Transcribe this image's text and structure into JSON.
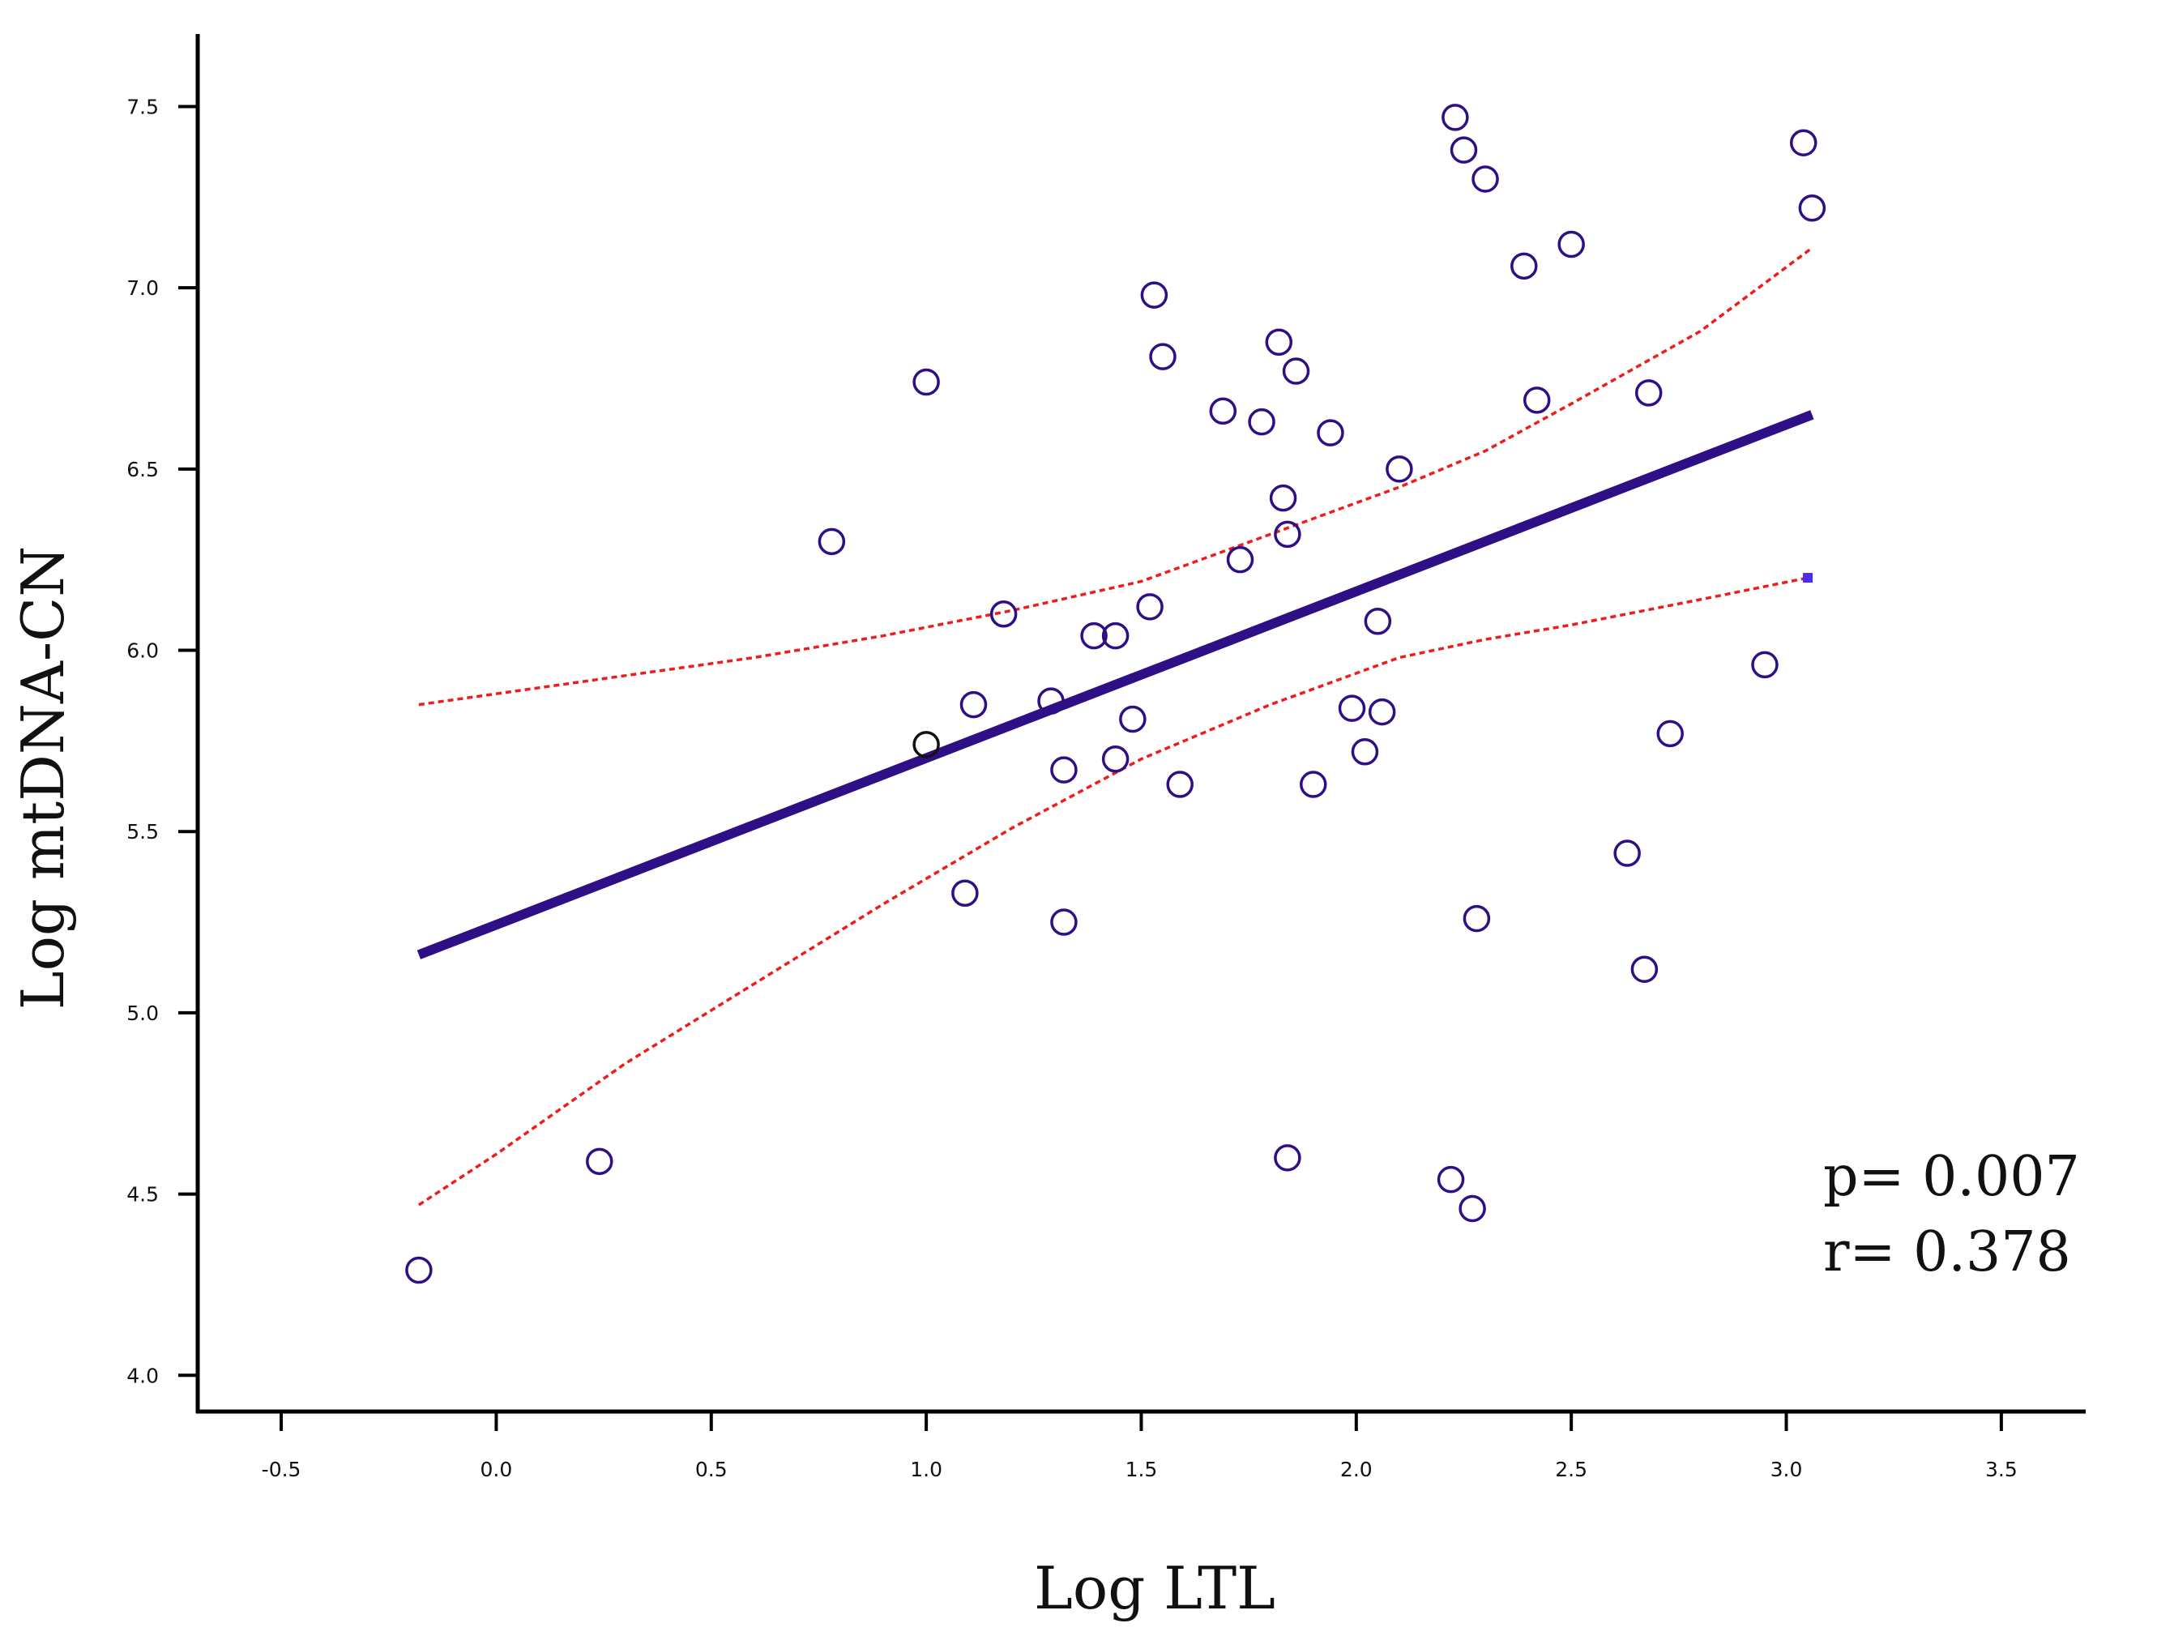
{
  "chart_data": {
    "type": "scatter",
    "xlabel": "Log LTL",
    "ylabel": "Log mtDNA-CN",
    "xlim": [
      -0.6,
      3.7
    ],
    "ylim": [
      3.9,
      7.7
    ],
    "x_ticks": [
      -0.5,
      0.0,
      0.5,
      1.0,
      1.5,
      2.0,
      2.5,
      3.0,
      3.5
    ],
    "x_tick_labels": [
      "-0.5",
      "0.0",
      "0.5",
      "1.0",
      "1.5",
      "2.0",
      "2.5",
      "3.0",
      "3.5"
    ],
    "y_ticks": [
      4.0,
      4.5,
      5.0,
      5.5,
      6.0,
      6.5,
      7.0,
      7.5
    ],
    "y_tick_labels": [
      "4.0",
      "4.5",
      "5.0",
      "5.5",
      "6.0",
      "6.5",
      "7.0",
      "7.5"
    ],
    "grid": false,
    "annotations": {
      "p_text": "p= 0.007",
      "r_text": "r=  0.378"
    },
    "colors": {
      "points": "#2e0f86",
      "highlight_point": "#111111",
      "fit_line": "#2e0f86",
      "ci_band": "#ee1c1c",
      "axis": "#000000",
      "marker_square": "#4b2cf0"
    },
    "points": [
      {
        "x": -0.18,
        "y": 4.29
      },
      {
        "x": 0.24,
        "y": 4.59
      },
      {
        "x": 0.78,
        "y": 6.3
      },
      {
        "x": 1.0,
        "y": 6.74
      },
      {
        "x": 1.09,
        "y": 5.33
      },
      {
        "x": 1.11,
        "y": 5.85
      },
      {
        "x": 1.18,
        "y": 6.1
      },
      {
        "x": 1.29,
        "y": 5.86
      },
      {
        "x": 1.32,
        "y": 5.67
      },
      {
        "x": 1.32,
        "y": 5.25
      },
      {
        "x": 1.39,
        "y": 6.04
      },
      {
        "x": 1.44,
        "y": 6.04
      },
      {
        "x": 1.44,
        "y": 5.7
      },
      {
        "x": 1.48,
        "y": 5.81
      },
      {
        "x": 1.52,
        "y": 6.12
      },
      {
        "x": 1.53,
        "y": 6.98
      },
      {
        "x": 1.55,
        "y": 6.81
      },
      {
        "x": 1.59,
        "y": 5.63
      },
      {
        "x": 1.69,
        "y": 6.66
      },
      {
        "x": 1.73,
        "y": 6.25
      },
      {
        "x": 1.78,
        "y": 6.63
      },
      {
        "x": 1.82,
        "y": 6.85
      },
      {
        "x": 1.83,
        "y": 6.42
      },
      {
        "x": 1.84,
        "y": 6.32
      },
      {
        "x": 1.84,
        "y": 4.6
      },
      {
        "x": 1.86,
        "y": 6.77
      },
      {
        "x": 1.9,
        "y": 5.63
      },
      {
        "x": 1.94,
        "y": 6.6
      },
      {
        "x": 1.99,
        "y": 5.84
      },
      {
        "x": 2.02,
        "y": 5.72
      },
      {
        "x": 2.05,
        "y": 6.08
      },
      {
        "x": 2.06,
        "y": 5.83
      },
      {
        "x": 2.1,
        "y": 6.5
      },
      {
        "x": 2.22,
        "y": 4.54
      },
      {
        "x": 2.23,
        "y": 7.47
      },
      {
        "x": 2.25,
        "y": 7.38
      },
      {
        "x": 2.27,
        "y": 4.46
      },
      {
        "x": 2.28,
        "y": 5.26
      },
      {
        "x": 2.3,
        "y": 7.3
      },
      {
        "x": 2.39,
        "y": 7.06
      },
      {
        "x": 2.42,
        "y": 6.69
      },
      {
        "x": 2.5,
        "y": 7.12
      },
      {
        "x": 2.63,
        "y": 5.44
      },
      {
        "x": 2.67,
        "y": 5.12
      },
      {
        "x": 2.68,
        "y": 6.71
      },
      {
        "x": 2.73,
        "y": 5.77
      },
      {
        "x": 2.95,
        "y": 5.96
      },
      {
        "x": 3.04,
        "y": 7.4
      },
      {
        "x": 3.06,
        "y": 7.22
      }
    ],
    "highlight_points": [
      {
        "x": 1.0,
        "y": 5.74
      }
    ],
    "fit_line": {
      "x": [
        -0.18,
        3.06
      ],
      "y": [
        5.16,
        6.65
      ]
    },
    "ci_upper": {
      "x": [
        -0.18,
        0.0,
        0.3,
        0.6,
        0.9,
        1.2,
        1.5,
        1.8,
        2.1,
        2.3,
        2.5,
        2.8,
        3.06
      ],
      "y": [
        5.85,
        5.88,
        5.93,
        5.98,
        6.04,
        6.11,
        6.19,
        6.32,
        6.45,
        6.55,
        6.68,
        6.88,
        7.11
      ]
    },
    "ci_lower": {
      "x": [
        -0.18,
        0.0,
        0.3,
        0.6,
        0.9,
        1.2,
        1.5,
        1.8,
        2.1,
        2.3,
        2.5,
        2.8,
        3.05
      ],
      "y": [
        4.47,
        4.61,
        4.86,
        5.08,
        5.3,
        5.51,
        5.7,
        5.85,
        5.98,
        6.03,
        6.07,
        6.14,
        6.2
      ]
    },
    "end_marker": {
      "x": 3.05,
      "y": 6.2
    }
  }
}
